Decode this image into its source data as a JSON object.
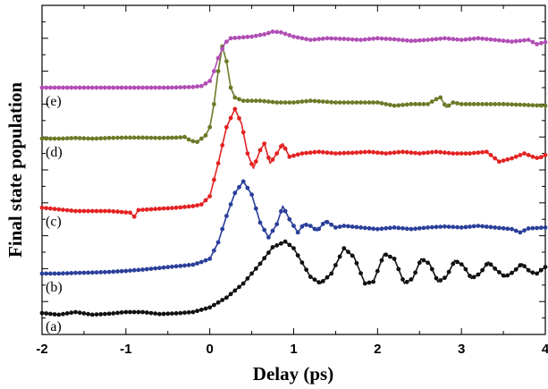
{
  "chart_data": {
    "type": "line",
    "title": "",
    "xlabel": "Delay (ps)",
    "ylabel": "Final state population",
    "xlim": [
      -2,
      4
    ],
    "ylim": [
      0,
      10
    ],
    "xticks": [
      "-2",
      "-1",
      "0",
      "1",
      "2",
      "3",
      "4"
    ],
    "yticks_labeled": false,
    "grid": false,
    "legend": "none",
    "series": [
      {
        "name": "(a)",
        "color": "#111111",
        "values": [
          [
            -2.0,
            0.65
          ],
          [
            -1.8,
            0.6
          ],
          [
            -1.6,
            0.68
          ],
          [
            -1.4,
            0.6
          ],
          [
            -1.2,
            0.63
          ],
          [
            -1.0,
            0.68
          ],
          [
            -0.8,
            0.68
          ],
          [
            -0.6,
            0.62
          ],
          [
            -0.4,
            0.64
          ],
          [
            -0.2,
            0.68
          ],
          [
            0.0,
            0.82
          ],
          [
            0.2,
            1.12
          ],
          [
            0.4,
            1.55
          ],
          [
            0.6,
            2.15
          ],
          [
            0.75,
            2.65
          ],
          [
            0.9,
            2.82
          ],
          [
            1.0,
            2.62
          ],
          [
            1.2,
            1.75
          ],
          [
            1.32,
            1.55
          ],
          [
            1.45,
            1.85
          ],
          [
            1.6,
            2.62
          ],
          [
            1.72,
            2.35
          ],
          [
            1.85,
            1.55
          ],
          [
            1.95,
            1.6
          ],
          [
            2.08,
            2.45
          ],
          [
            2.2,
            2.3
          ],
          [
            2.32,
            1.55
          ],
          [
            2.42,
            1.7
          ],
          [
            2.52,
            2.3
          ],
          [
            2.62,
            2.15
          ],
          [
            2.72,
            1.6
          ],
          [
            2.82,
            1.75
          ],
          [
            2.92,
            2.25
          ],
          [
            3.02,
            2.1
          ],
          [
            3.12,
            1.7
          ],
          [
            3.22,
            1.85
          ],
          [
            3.32,
            2.2
          ],
          [
            3.42,
            1.95
          ],
          [
            3.52,
            1.75
          ],
          [
            3.62,
            1.9
          ],
          [
            3.72,
            2.15
          ],
          [
            3.82,
            1.9
          ],
          [
            3.9,
            1.85
          ],
          [
            4.0,
            2.05
          ]
        ]
      },
      {
        "name": "(b)",
        "color": "#2a3f9a",
        "values": [
          [
            -2.0,
            1.85
          ],
          [
            -1.8,
            1.85
          ],
          [
            -1.6,
            1.87
          ],
          [
            -1.4,
            1.88
          ],
          [
            -1.2,
            1.9
          ],
          [
            -1.0,
            1.93
          ],
          [
            -0.8,
            1.97
          ],
          [
            -0.6,
            2.02
          ],
          [
            -0.4,
            2.07
          ],
          [
            -0.2,
            2.12
          ],
          [
            -0.1,
            2.2
          ],
          [
            0.0,
            2.3
          ],
          [
            0.1,
            2.8
          ],
          [
            0.2,
            3.6
          ],
          [
            0.3,
            4.3
          ],
          [
            0.4,
            4.65
          ],
          [
            0.5,
            4.25
          ],
          [
            0.6,
            3.4
          ],
          [
            0.7,
            2.95
          ],
          [
            0.8,
            3.35
          ],
          [
            0.87,
            3.9
          ],
          [
            0.95,
            3.5
          ],
          [
            1.05,
            3.1
          ],
          [
            1.12,
            3.35
          ],
          [
            1.2,
            3.3
          ],
          [
            1.28,
            3.15
          ],
          [
            1.38,
            3.45
          ],
          [
            1.5,
            3.25
          ],
          [
            1.6,
            3.3
          ],
          [
            1.8,
            3.25
          ],
          [
            2.0,
            3.2
          ],
          [
            2.2,
            3.25
          ],
          [
            2.4,
            3.2
          ],
          [
            2.6,
            3.25
          ],
          [
            2.8,
            3.28
          ],
          [
            3.0,
            3.25
          ],
          [
            3.2,
            3.3
          ],
          [
            3.4,
            3.25
          ],
          [
            3.6,
            3.2
          ],
          [
            3.7,
            3.1
          ],
          [
            3.8,
            3.22
          ],
          [
            4.0,
            3.25
          ]
        ]
      },
      {
        "name": "(c)",
        "color": "#e32222",
        "values": [
          [
            -2.0,
            3.85
          ],
          [
            -1.6,
            3.75
          ],
          [
            -1.2,
            3.75
          ],
          [
            -0.95,
            3.7
          ],
          [
            -0.9,
            3.58
          ],
          [
            -0.85,
            3.78
          ],
          [
            -0.6,
            3.82
          ],
          [
            -0.4,
            3.85
          ],
          [
            -0.2,
            3.9
          ],
          [
            -0.1,
            3.95
          ],
          [
            0.0,
            4.2
          ],
          [
            0.1,
            5.2
          ],
          [
            0.2,
            6.3
          ],
          [
            0.3,
            6.85
          ],
          [
            0.38,
            6.4
          ],
          [
            0.45,
            5.5
          ],
          [
            0.52,
            5.05
          ],
          [
            0.6,
            5.6
          ],
          [
            0.65,
            5.8
          ],
          [
            0.72,
            5.2
          ],
          [
            0.8,
            5.5
          ],
          [
            0.87,
            5.8
          ],
          [
            0.95,
            5.4
          ],
          [
            1.1,
            5.5
          ],
          [
            1.3,
            5.55
          ],
          [
            1.5,
            5.5
          ],
          [
            1.7,
            5.52
          ],
          [
            1.9,
            5.55
          ],
          [
            2.1,
            5.5
          ],
          [
            2.3,
            5.55
          ],
          [
            2.5,
            5.5
          ],
          [
            2.7,
            5.55
          ],
          [
            2.9,
            5.5
          ],
          [
            3.1,
            5.5
          ],
          [
            3.3,
            5.55
          ],
          [
            3.45,
            5.25
          ],
          [
            3.6,
            5.35
          ],
          [
            3.75,
            5.5
          ],
          [
            3.85,
            5.4
          ],
          [
            3.92,
            5.35
          ],
          [
            4.0,
            5.45
          ]
        ]
      },
      {
        "name": "(d)",
        "color": "#6b7a28",
        "values": [
          [
            -2.0,
            5.95
          ],
          [
            -1.8,
            5.95
          ],
          [
            -1.6,
            5.97
          ],
          [
            -1.4,
            5.95
          ],
          [
            -1.2,
            5.97
          ],
          [
            -1.0,
            5.98
          ],
          [
            -0.8,
            5.98
          ],
          [
            -0.6,
            5.97
          ],
          [
            -0.4,
            5.98
          ],
          [
            -0.3,
            6.0
          ],
          [
            -0.22,
            5.88
          ],
          [
            -0.15,
            5.85
          ],
          [
            -0.05,
            6.05
          ],
          [
            0.0,
            6.3
          ],
          [
            0.05,
            7.0
          ],
          [
            0.1,
            8.0
          ],
          [
            0.15,
            8.75
          ],
          [
            0.2,
            8.3
          ],
          [
            0.25,
            7.5
          ],
          [
            0.3,
            7.2
          ],
          [
            0.4,
            7.1
          ],
          [
            0.6,
            7.1
          ],
          [
            0.8,
            7.05
          ],
          [
            1.0,
            7.05
          ],
          [
            1.2,
            7.1
          ],
          [
            1.5,
            7.05
          ],
          [
            1.8,
            7.05
          ],
          [
            2.0,
            7.05
          ],
          [
            2.2,
            6.95
          ],
          [
            2.4,
            7.0
          ],
          [
            2.6,
            7.0
          ],
          [
            2.7,
            7.15
          ],
          [
            2.75,
            7.2
          ],
          [
            2.82,
            6.9
          ],
          [
            2.9,
            7.05
          ],
          [
            3.0,
            7.0
          ],
          [
            3.2,
            7.0
          ],
          [
            3.5,
            7.0
          ],
          [
            3.8,
            6.97
          ],
          [
            4.0,
            6.95
          ]
        ]
      },
      {
        "name": "(e)",
        "color": "#b04eb4",
        "values": [
          [
            -2.0,
            7.5
          ],
          [
            -1.7,
            7.5
          ],
          [
            -1.4,
            7.5
          ],
          [
            -1.1,
            7.5
          ],
          [
            -0.8,
            7.5
          ],
          [
            -0.5,
            7.5
          ],
          [
            -0.2,
            7.52
          ],
          [
            -0.1,
            7.55
          ],
          [
            0.0,
            7.7
          ],
          [
            0.05,
            8.0
          ],
          [
            0.1,
            8.4
          ],
          [
            0.18,
            8.85
          ],
          [
            0.25,
            9.0
          ],
          [
            0.35,
            9.02
          ],
          [
            0.5,
            9.05
          ],
          [
            0.65,
            9.12
          ],
          [
            0.75,
            9.2
          ],
          [
            0.85,
            9.18
          ],
          [
            1.0,
            9.05
          ],
          [
            1.2,
            8.95
          ],
          [
            1.4,
            9.0
          ],
          [
            1.6,
            8.98
          ],
          [
            1.8,
            8.95
          ],
          [
            2.0,
            9.0
          ],
          [
            2.2,
            8.97
          ],
          [
            2.4,
            8.92
          ],
          [
            2.6,
            8.95
          ],
          [
            2.8,
            9.0
          ],
          [
            3.0,
            8.95
          ],
          [
            3.2,
            9.0
          ],
          [
            3.4,
            8.95
          ],
          [
            3.6,
            8.9
          ],
          [
            3.8,
            8.95
          ],
          [
            3.9,
            8.82
          ],
          [
            4.0,
            8.88
          ]
        ]
      }
    ]
  }
}
